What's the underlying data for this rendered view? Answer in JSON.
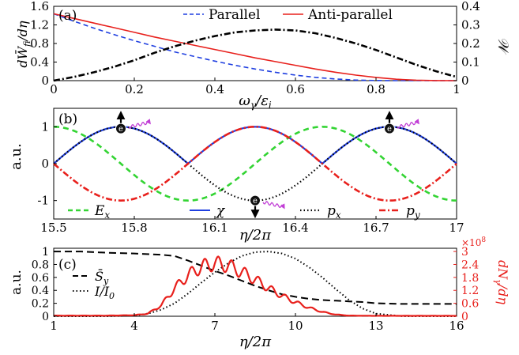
{
  "chart_data": [
    {
      "panel": "(a)",
      "type": "line",
      "xlabel": "ω_γ/ε_i",
      "ylabel_left": "dW̄_fi/dη",
      "ylabel_right": "𝒲",
      "xlim": [
        0,
        1
      ],
      "ylim_left": [
        0,
        1.6
      ],
      "ylim_right": [
        0,
        0.4
      ],
      "xticks": [
        "0",
        "0.2",
        "0.4",
        "0.6",
        "0.8",
        "1"
      ],
      "yticks_left": [
        "0",
        "0.4",
        "0.8",
        "1.2",
        "1.6"
      ],
      "yticks_right": [
        "0",
        "0.1",
        "0.2",
        "0.3",
        "0.4"
      ],
      "legend_position": "top",
      "grid": false,
      "series": [
        {
          "name": "Parallel",
          "axis": "left",
          "color": "#1f3fe0",
          "dash": "dashed",
          "x": [
            0,
            0.05,
            0.1,
            0.15,
            0.2,
            0.25,
            0.3,
            0.35,
            0.4,
            0.45,
            0.5,
            0.55,
            0.6,
            0.65,
            0.7,
            0.75,
            0.8,
            0.85,
            0.9,
            0.95,
            1.0
          ],
          "y": [
            1.44,
            1.28,
            1.13,
            0.99,
            0.86,
            0.74,
            0.62,
            0.52,
            0.42,
            0.33,
            0.25,
            0.18,
            0.12,
            0.07,
            0.035,
            0.012,
            0.003,
            0,
            0,
            0,
            0
          ]
        },
        {
          "name": "Anti-parallel",
          "axis": "left",
          "color": "#e8201c",
          "dash": "solid",
          "x": [
            0,
            0.05,
            0.1,
            0.15,
            0.2,
            0.25,
            0.3,
            0.35,
            0.4,
            0.45,
            0.5,
            0.55,
            0.6,
            0.65,
            0.7,
            0.75,
            0.8,
            0.85,
            0.9,
            0.95,
            1.0
          ],
          "y": [
            1.44,
            1.34,
            1.24,
            1.14,
            1.04,
            0.94,
            0.85,
            0.76,
            0.67,
            0.58,
            0.49,
            0.41,
            0.33,
            0.25,
            0.18,
            0.12,
            0.07,
            0.03,
            0.01,
            0.002,
            0
          ]
        },
        {
          "name": "",
          "axis": "right",
          "color": "#000000",
          "dash": "dashdot",
          "x": [
            0,
            0.05,
            0.1,
            0.15,
            0.2,
            0.25,
            0.3,
            0.35,
            0.4,
            0.45,
            0.5,
            0.55,
            0.6,
            0.65,
            0.7,
            0.75,
            0.8,
            0.85,
            0.9,
            0.95,
            1.0
          ],
          "y": [
            0,
            0.02,
            0.045,
            0.075,
            0.11,
            0.15,
            0.185,
            0.215,
            0.24,
            0.26,
            0.27,
            0.275,
            0.27,
            0.255,
            0.23,
            0.2,
            0.165,
            0.125,
            0.085,
            0.05,
            0.02
          ]
        }
      ]
    },
    {
      "panel": "(b)",
      "type": "line",
      "xlabel": "η/2π",
      "ylabel": "a.u.",
      "xlim": [
        15.5,
        17
      ],
      "ylim": [
        -1.5,
        1.5
      ],
      "xticks": [
        "15.5",
        "15.8",
        "16.1",
        "16.4",
        "16.7",
        "17"
      ],
      "yticks": [
        "-1",
        "0",
        "1"
      ],
      "legend_position": "bottom",
      "grid": false,
      "electron_label": "e",
      "electrons": [
        {
          "x": 15.75,
          "y": 0.95,
          "arrow": "up"
        },
        {
          "x": 16.25,
          "y": -1.0,
          "arrow": "down"
        },
        {
          "x": 16.75,
          "y": 0.95,
          "arrow": "up"
        }
      ],
      "series": [
        {
          "name": "E_x",
          "color": "#33d433",
          "dash": "dashed",
          "func": "-cos",
          "amplitude": 1,
          "period": 1
        },
        {
          "name": "χ",
          "color": "#1f3fe0",
          "dash": "solid",
          "func": "|sin|",
          "amplitude": 1,
          "period": 1
        },
        {
          "name": "p_x",
          "color": "#000000",
          "dash": "dotted",
          "func": "-cos",
          "amplitude": 1,
          "period": 1,
          "phase_shift": 0.25
        },
        {
          "name": "p_y",
          "color": "#e8201c",
          "dash": "dashdot",
          "func": "sin",
          "amplitude": 1,
          "period": 1
        }
      ]
    },
    {
      "panel": "(c)",
      "type": "line",
      "xlabel": "η/2π",
      "ylabel_left": "a.u.",
      "ylabel_right": "dN_γ/dη",
      "right_multiplier": "×10^8",
      "xlim": [
        1,
        16
      ],
      "ylim_left": [
        0,
        1.05
      ],
      "ylim_right": [
        0,
        3.15
      ],
      "xticks": [
        "1",
        "4",
        "7",
        "10",
        "13",
        "16"
      ],
      "yticks_left": [
        "0",
        "0.2",
        "0.4",
        "0.6",
        "0.8",
        "1"
      ],
      "yticks_right": [
        "0",
        "0.6",
        "1.2",
        "1.8",
        "2.4",
        "3"
      ],
      "legend_position": "left",
      "grid": false,
      "series": [
        {
          "name": "S̄_y",
          "axis": "left",
          "color": "#000000",
          "dash": "dashed",
          "x": [
            1,
            2,
            3,
            4,
            5,
            5.5,
            6,
            6.5,
            7,
            7.5,
            8,
            8.5,
            9,
            9.5,
            10,
            10.5,
            11,
            11.5,
            12,
            12.5,
            13,
            14,
            15,
            16
          ],
          "y": [
            1.0,
            1.0,
            0.98,
            0.97,
            0.95,
            0.93,
            0.86,
            0.78,
            0.7,
            0.63,
            0.55,
            0.47,
            0.4,
            0.34,
            0.3,
            0.27,
            0.25,
            0.24,
            0.23,
            0.22,
            0.2,
            0.19,
            0.19,
            0.19
          ]
        },
        {
          "name": "I/I_0",
          "axis": "left",
          "color": "#000000",
          "dash": "dotted",
          "x": [
            1,
            2,
            3,
            4,
            4.5,
            5,
            5.5,
            6,
            6.5,
            7,
            7.5,
            8,
            8.5,
            9,
            9.5,
            10,
            10.5,
            11,
            11.5,
            12,
            12.5,
            13,
            14,
            15,
            16
          ],
          "y": [
            0,
            0,
            0,
            0.01,
            0.04,
            0.1,
            0.2,
            0.35,
            0.52,
            0.68,
            0.82,
            0.93,
            0.99,
            1.0,
            0.97,
            0.89,
            0.76,
            0.6,
            0.42,
            0.25,
            0.12,
            0.04,
            0,
            0,
            0
          ]
        },
        {
          "name": "",
          "axis": "right",
          "color": "#e8201c",
          "dash": "solid",
          "oscillating": true,
          "x": [
            1,
            3,
            4,
            4.5,
            5,
            5.5,
            6,
            6.5,
            7,
            7.5,
            8,
            8.5,
            9,
            9.5,
            10,
            10.5,
            11,
            11.5,
            12,
            13,
            16
          ],
          "y": [
            0.03,
            0.03,
            0.05,
            0.12,
            0.5,
            1.3,
            1.9,
            2.3,
            2.45,
            2.35,
            2.05,
            1.7,
            1.3,
            0.95,
            0.65,
            0.4,
            0.2,
            0.08,
            0.03,
            0.02,
            0.02
          ]
        }
      ]
    }
  ]
}
